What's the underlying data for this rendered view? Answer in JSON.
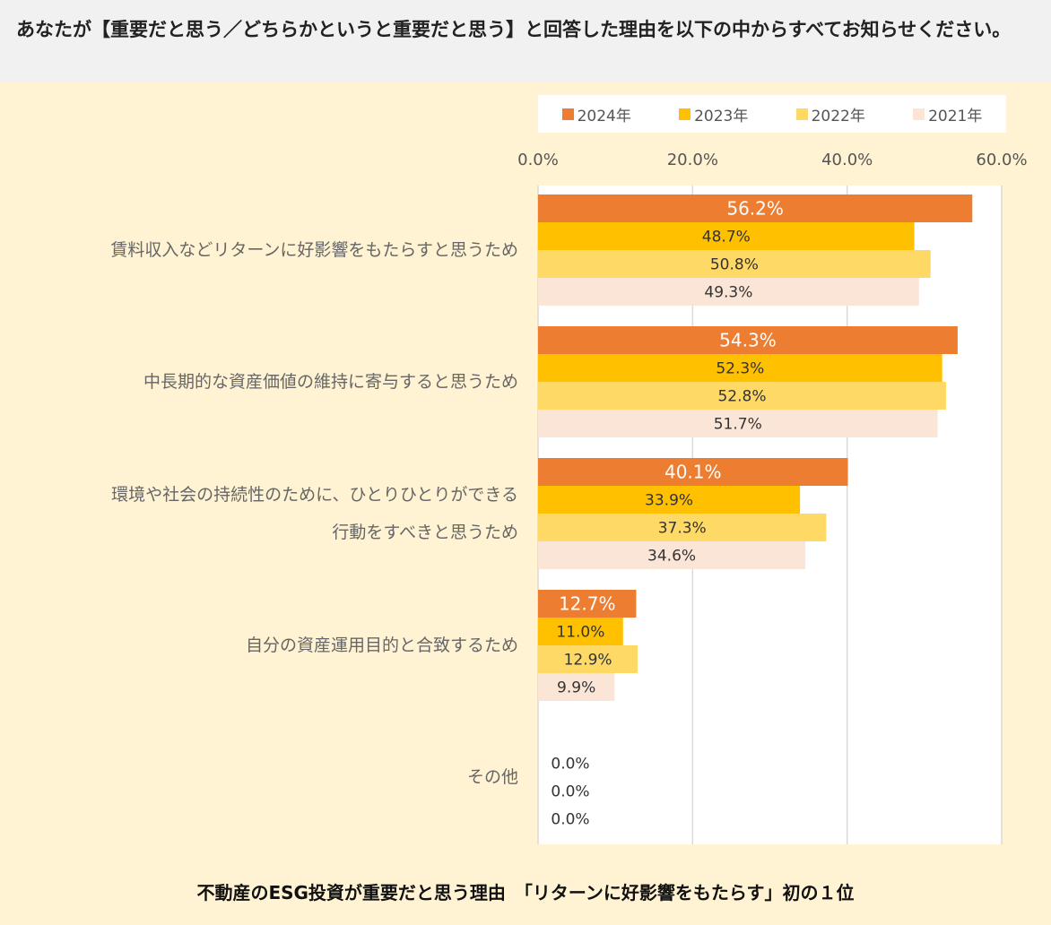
{
  "question": "あなたが【重要だと思う／どちらかというと重要だと思う】と回答した理由を以下の中からすべてお知らせください。",
  "footer_title": "不動産のESG投資が重要だと思う理由　「リターンに好影響をもたらす」初の１位",
  "chart_data": {
    "type": "bar",
    "orientation": "horizontal",
    "title": "不動産のESG投資が重要だと思う理由　「リターンに好影響をもたらす」初の１位",
    "xlim": [
      0,
      60
    ],
    "ticks": [
      "0.0%",
      "20.0%",
      "40.0%",
      "60.0%"
    ],
    "tick_values": [
      0,
      20,
      40,
      60
    ],
    "grid": true,
    "legend_position": "top",
    "categories": [
      [
        "賃料収入などリターンに好影響をもたらすと思うため"
      ],
      [
        "中長期的な資産価値の維持に寄与すると思うため"
      ],
      [
        "環境や社会の持続性のために、ひとりひとりができる",
        "行動をすべきと思うため"
      ],
      [
        "自分の資産運用目的と合致するため"
      ],
      [
        "その他"
      ]
    ],
    "series": [
      {
        "name": "2024年",
        "color": "#ed7d31",
        "label_color": "#ffffff",
        "values": [
          56.2,
          54.3,
          40.1,
          12.7,
          null
        ],
        "labels": [
          "56.2%",
          "54.3%",
          "40.1%",
          "12.7%",
          ""
        ]
      },
      {
        "name": "2023年",
        "color": "#ffc000",
        "label_color": "#333333",
        "values": [
          48.7,
          52.3,
          33.9,
          11.0,
          0.0
        ],
        "labels": [
          "48.7%",
          "52.3%",
          "33.9%",
          "11.0%",
          "0.0%"
        ]
      },
      {
        "name": "2022年",
        "color": "#ffd966",
        "label_color": "#333333",
        "values": [
          50.8,
          52.8,
          37.3,
          12.9,
          0.0
        ],
        "labels": [
          "50.8%",
          "52.8%",
          "37.3%",
          "12.9%",
          "0.0%"
        ]
      },
      {
        "name": "2021年",
        "color": "#fbe5d6",
        "label_color": "#333333",
        "values": [
          49.3,
          51.7,
          34.6,
          9.9,
          0.0
        ],
        "labels": [
          "49.3%",
          "51.7%",
          "34.6%",
          "9.9%",
          "0.0%"
        ]
      }
    ]
  }
}
